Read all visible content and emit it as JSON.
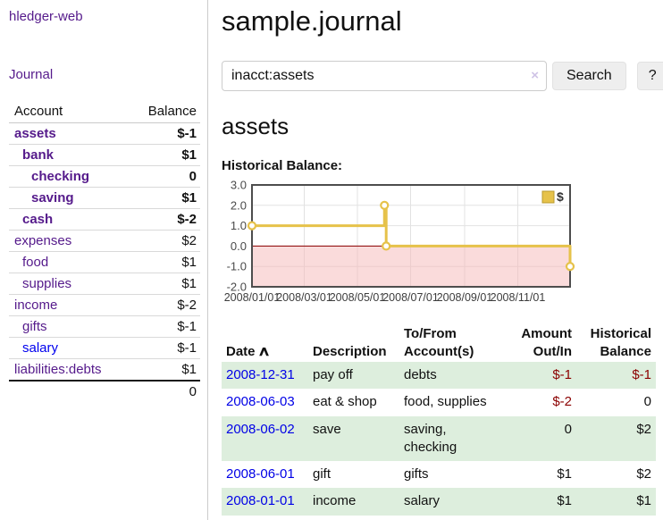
{
  "brand": "hledger-web",
  "colors": {
    "link_purple": "#551a8b",
    "link_blue": "#0000ee",
    "negative_red": "#8b0000",
    "muted_negative": "#c47a7a",
    "row_stripe_green": "#ddeedd",
    "chart_line_yellow": "#e6c24a",
    "chart_negative_pink": "#f5b8b8",
    "chart_zero_line": "#8b0000"
  },
  "sidebar": {
    "journal_link": "Journal",
    "accounts_header": {
      "account": "Account",
      "balance": "Balance"
    },
    "accounts": [
      {
        "name": "assets",
        "balance": "$-1"
      },
      {
        "name": "bank",
        "balance": "$1"
      },
      {
        "name": "checking",
        "balance": "0"
      },
      {
        "name": "saving",
        "balance": "$1"
      },
      {
        "name": "cash",
        "balance": "$-2"
      },
      {
        "name": "expenses",
        "balance": "$2"
      },
      {
        "name": "food",
        "balance": "$1"
      },
      {
        "name": "supplies",
        "balance": "$1"
      },
      {
        "name": "income",
        "balance": "$-2"
      },
      {
        "name": "gifts",
        "balance": "$-1"
      },
      {
        "name": "salary",
        "balance": "$-1"
      },
      {
        "name": "liabilities:debts",
        "balance": "$1"
      }
    ],
    "total": "0"
  },
  "header": {
    "title": "sample.journal"
  },
  "search": {
    "value": "inacct:assets",
    "clear_icon": "×",
    "button": "Search",
    "help_button": "?"
  },
  "account_page": {
    "title": "assets",
    "chart_label": "Historical Balance:"
  },
  "chart_data": {
    "type": "line",
    "step": true,
    "title": "Historical Balance",
    "series": [
      {
        "name": "$",
        "points": [
          [
            "2008-01-01",
            1
          ],
          [
            "2008-06-01",
            2
          ],
          [
            "2008-06-03",
            0
          ],
          [
            "2008-12-31",
            -1
          ]
        ]
      }
    ],
    "xlim": [
      "2008-01-01",
      "2008-12-31"
    ],
    "ylim": [
      -2,
      3
    ],
    "y_ticks": [
      3.0,
      2.0,
      1.0,
      0.0,
      -1.0,
      -2.0
    ],
    "x_ticks": [
      "2008/01/01",
      "2008/03/01",
      "2008/05/01",
      "2008/07/01",
      "2008/09/01",
      "2008/11/01"
    ],
    "legend": "$",
    "legend_position": "top-right",
    "grid": true,
    "negative_region_shaded": true,
    "line_color": "#e6c24a",
    "negative_fill": "#f5b8b8",
    "zero_line_color": "#8b0000"
  },
  "register": {
    "columns": {
      "date": "Date",
      "sort_icon": "∧",
      "description": "Description",
      "accounts": "To/From Account(s)",
      "amount": "Amount Out/In",
      "balance": "Historical Balance"
    },
    "rows": [
      {
        "date": "2008-12-31",
        "description": "pay off",
        "accounts": "debts",
        "amount": "$-1",
        "balance": "$-1"
      },
      {
        "date": "2008-06-03",
        "description": "eat & shop",
        "accounts": "food, supplies",
        "amount": "$-2",
        "balance": "0"
      },
      {
        "date": "2008-06-02",
        "description": "save",
        "accounts": "saving,\nchecking",
        "amount": "0",
        "balance": "$2"
      },
      {
        "date": "2008-06-01",
        "description": "gift",
        "accounts": "gifts",
        "amount": "$1",
        "balance": "$2"
      },
      {
        "date": "2008-01-01",
        "description": "income",
        "accounts": "salary",
        "amount": "$1",
        "balance": "$1"
      }
    ]
  }
}
